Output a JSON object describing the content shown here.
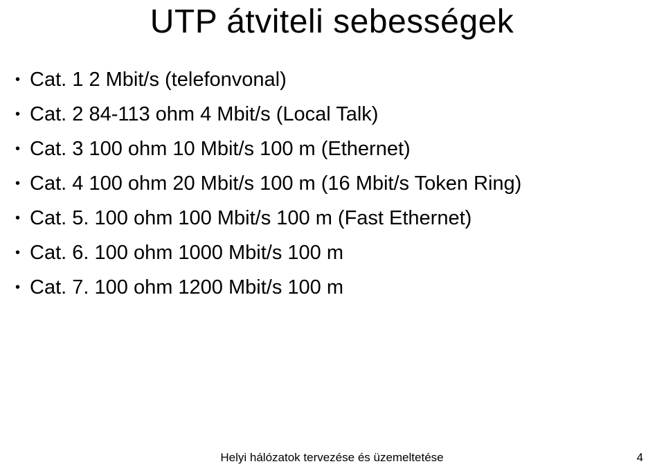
{
  "title": "UTP átviteli sebességek",
  "bullets": [
    "Cat. 1 2 Mbit/s (telefonvonal)",
    "Cat. 2 84-113 ohm 4 Mbit/s (Local Talk)",
    "Cat. 3 100 ohm 10 Mbit/s 100 m (Ethernet)",
    "Cat. 4 100 ohm 20 Mbit/s 100 m (16 Mbit/s Token Ring)",
    "Cat. 5. 100 ohm 100 Mbit/s 100 m (Fast Ethernet)",
    "Cat. 6. 100 ohm 1000 Mbit/s 100 m",
    "Cat. 7. 100 ohm 1200 Mbit/s 100 m"
  ],
  "footer": {
    "center": "Helyi hálózatok tervezése és üzemeltetése",
    "page": "4"
  },
  "style": {
    "background": "#ffffff",
    "text_color": "#000000",
    "title_fontsize": 48,
    "bullet_fontsize": 29,
    "footer_fontsize": 17
  }
}
